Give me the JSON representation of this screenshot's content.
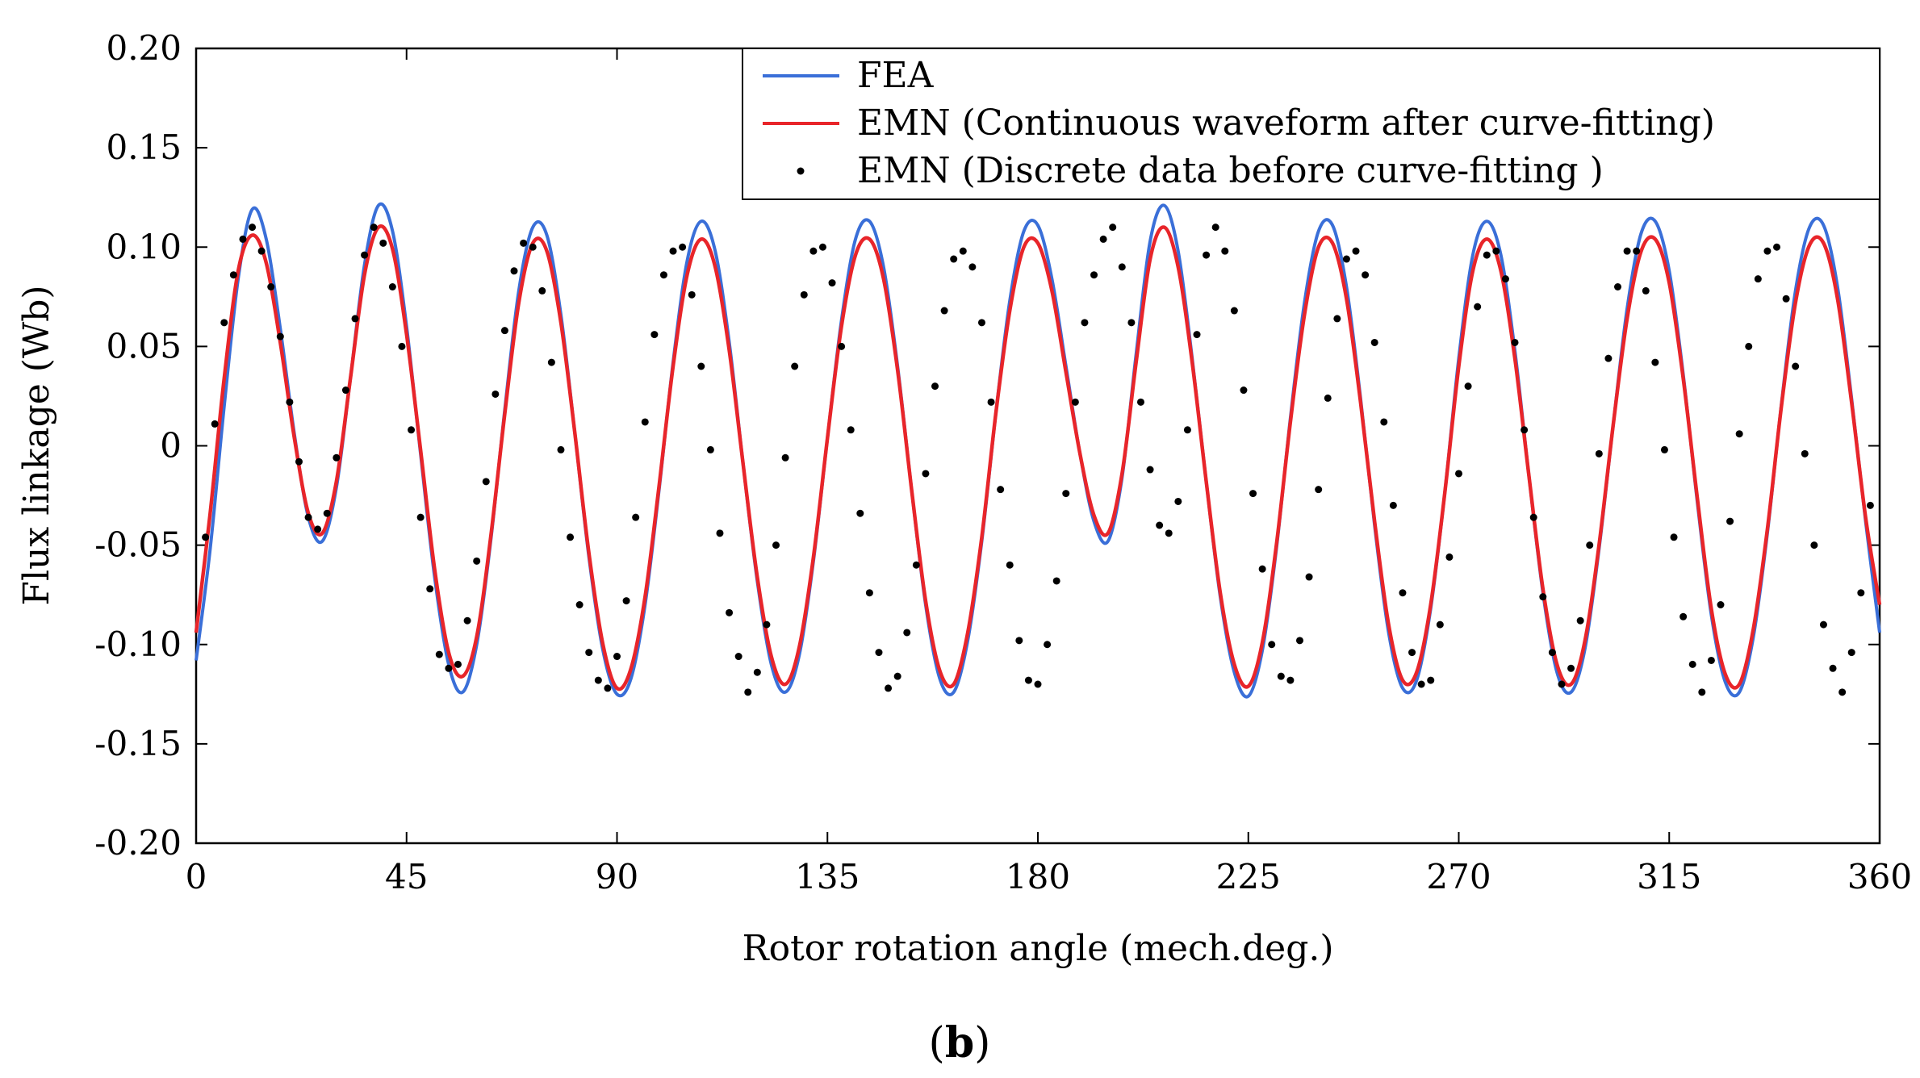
{
  "chart_data": {
    "type": "line",
    "title": "",
    "xlabel": "Rotor rotation angle (mech.deg.)",
    "ylabel": "Flux linkage (Wb)",
    "xlim": [
      0,
      360
    ],
    "ylim": [
      -0.2,
      0.2
    ],
    "xticks": [
      0,
      45,
      90,
      135,
      180,
      225,
      270,
      315,
      360
    ],
    "yticks": [
      0.2,
      0.15,
      0.1,
      0.05,
      0,
      -0.05,
      -0.1,
      -0.15,
      -0.2
    ],
    "ytick_labels": [
      "0.20",
      "0.15",
      "0.10",
      "0.05",
      "0",
      "-0.05",
      "-0.10",
      "-0.15",
      "-0.20"
    ],
    "xtick_labels": [
      "0",
      "45",
      "90",
      "135",
      "180",
      "225",
      "270",
      "315",
      "360"
    ],
    "grid": false,
    "legend_position": "top-right",
    "caption_open": "(",
    "caption_bold": "b",
    "caption_close": ")",
    "series": [
      {
        "name": "FEA",
        "style": "line",
        "color": "#3a6fd8",
        "x": [
          0,
          3,
          6,
          9,
          12,
          15,
          18,
          21,
          24,
          27,
          30,
          33,
          36,
          39,
          42,
          45,
          48,
          51,
          54,
          57,
          60,
          63,
          66,
          69,
          72,
          75,
          78,
          81,
          84,
          87,
          90,
          93,
          96,
          99,
          102,
          105,
          108,
          111,
          114,
          117,
          120,
          123,
          126,
          129,
          132,
          135,
          138,
          141,
          144,
          147,
          150,
          153,
          156,
          159,
          162,
          165,
          168,
          171,
          174,
          177,
          180,
          183,
          186,
          189,
          192,
          195,
          198,
          201,
          204,
          207,
          210,
          213,
          216,
          219,
          222,
          225,
          228,
          231,
          234,
          237,
          240,
          243,
          246,
          249,
          252,
          255,
          258,
          261,
          264,
          267,
          270,
          273,
          276,
          279,
          282,
          285,
          288,
          291,
          294,
          297,
          300,
          303,
          306,
          309,
          312,
          315,
          318,
          321,
          324,
          327,
          330,
          333,
          336,
          339,
          342,
          345,
          348,
          351,
          354,
          357,
          360
        ],
        "y": [
          -0.108,
          -0.052,
          0.02,
          0.084,
          0.119,
          0.104,
          0.059,
          0.006,
          -0.036,
          -0.048,
          -0.021,
          0.034,
          0.091,
          0.121,
          0.108,
          0.06,
          -0.004,
          -0.066,
          -0.11,
          -0.124,
          -0.1,
          -0.048,
          0.018,
          0.078,
          0.11,
          0.106,
          0.066,
          0.006,
          -0.056,
          -0.103,
          -0.125,
          -0.117,
          -0.08,
          -0.022,
          0.042,
          0.093,
          0.113,
          0.098,
          0.052,
          -0.01,
          -0.068,
          -0.11,
          -0.124,
          -0.105,
          -0.058,
          0.004,
          0.063,
          0.104,
          0.113,
          0.09,
          0.04,
          -0.022,
          -0.08,
          -0.117,
          -0.124,
          -0.098,
          -0.048,
          0.016,
          0.073,
          0.108,
          0.111,
          0.084,
          0.04,
          -0.004,
          -0.038,
          -0.048,
          -0.016,
          0.046,
          0.103,
          0.121,
          0.098,
          0.044,
          -0.018,
          -0.076,
          -0.114,
          -0.126,
          -0.103,
          -0.052,
          0.014,
          0.072,
          0.108,
          0.111,
          0.08,
          0.024,
          -0.04,
          -0.094,
          -0.122,
          -0.118,
          -0.082,
          -0.024,
          0.044,
          0.096,
          0.113,
          0.096,
          0.048,
          -0.015,
          -0.074,
          -0.114,
          -0.124,
          -0.102,
          -0.052,
          0.01,
          0.069,
          0.107,
          0.113,
          0.088,
          0.036,
          -0.028,
          -0.085,
          -0.119,
          -0.124,
          -0.096,
          -0.044,
          0.021,
          0.078,
          0.11,
          0.111,
          0.08,
          0.024,
          -0.038,
          -0.094
        ]
      },
      {
        "name": "EMN (Continuous waveform after curve-fitting)",
        "style": "line",
        "color": "#e8252a",
        "x": [
          0,
          3,
          6,
          9,
          12,
          15,
          18,
          21,
          24,
          27,
          30,
          33,
          36,
          39,
          42,
          45,
          48,
          51,
          54,
          57,
          60,
          63,
          66,
          69,
          72,
          75,
          78,
          81,
          84,
          87,
          90,
          93,
          96,
          99,
          102,
          105,
          108,
          111,
          114,
          117,
          120,
          123,
          126,
          129,
          132,
          135,
          138,
          141,
          144,
          147,
          150,
          153,
          156,
          159,
          162,
          165,
          168,
          171,
          174,
          177,
          180,
          183,
          186,
          189,
          192,
          195,
          198,
          201,
          204,
          207,
          210,
          213,
          216,
          219,
          222,
          225,
          228,
          231,
          234,
          237,
          240,
          243,
          246,
          249,
          252,
          255,
          258,
          261,
          264,
          267,
          270,
          273,
          276,
          279,
          282,
          285,
          288,
          291,
          294,
          297,
          300,
          303,
          306,
          309,
          312,
          315,
          318,
          321,
          324,
          327,
          330,
          333,
          336,
          339,
          342,
          345,
          348,
          351,
          354,
          357,
          360
        ],
        "y": [
          -0.094,
          -0.034,
          0.034,
          0.088,
          0.106,
          0.092,
          0.052,
          0.004,
          -0.034,
          -0.044,
          -0.018,
          0.034,
          0.086,
          0.11,
          0.099,
          0.056,
          -0.002,
          -0.062,
          -0.104,
          -0.116,
          -0.096,
          -0.046,
          0.016,
          0.072,
          0.102,
          0.098,
          0.062,
          0.006,
          -0.054,
          -0.1,
          -0.122,
          -0.112,
          -0.076,
          -0.02,
          0.04,
          0.086,
          0.104,
          0.09,
          0.048,
          -0.01,
          -0.066,
          -0.106,
          -0.12,
          -0.101,
          -0.056,
          0.004,
          0.06,
          0.096,
          0.104,
          0.084,
          0.038,
          -0.022,
          -0.078,
          -0.113,
          -0.12,
          -0.094,
          -0.046,
          0.016,
          0.068,
          0.1,
          0.102,
          0.078,
          0.037,
          -0.004,
          -0.035,
          -0.044,
          -0.014,
          0.042,
          0.094,
          0.11,
          0.09,
          0.042,
          -0.018,
          -0.074,
          -0.11,
          -0.121,
          -0.099,
          -0.05,
          0.012,
          0.066,
          0.1,
          0.102,
          0.074,
          0.022,
          -0.038,
          -0.09,
          -0.118,
          -0.114,
          -0.08,
          -0.024,
          0.04,
          0.088,
          0.104,
          0.088,
          0.044,
          -0.015,
          -0.072,
          -0.11,
          -0.12,
          -0.098,
          -0.05,
          0.01,
          0.064,
          0.098,
          0.104,
          0.082,
          0.034,
          -0.026,
          -0.082,
          -0.115,
          -0.12,
          -0.092,
          -0.042,
          0.02,
          0.072,
          0.101,
          0.102,
          0.074,
          0.022,
          -0.036,
          -0.08
        ]
      },
      {
        "name": "EMN (Discrete data before curve-fitting )",
        "style": "points",
        "color": "#000000",
        "x": [
          2,
          4,
          6,
          8,
          10,
          12,
          14,
          16,
          18,
          20,
          22,
          24,
          26,
          28,
          30,
          32,
          34,
          36,
          38,
          40,
          42,
          44,
          46,
          48,
          50,
          52,
          54,
          56,
          58,
          60,
          62,
          64,
          66,
          68,
          70,
          72,
          74,
          76,
          78,
          80,
          82,
          84,
          86,
          88,
          90,
          92,
          94,
          96,
          98,
          100,
          102,
          104,
          106,
          108,
          110,
          112,
          114,
          116,
          118,
          120,
          122,
          124,
          126,
          128,
          130,
          132,
          134,
          136,
          138,
          140,
          142,
          144,
          146,
          148,
          150,
          152,
          154,
          156,
          158,
          160,
          162,
          164,
          166,
          168,
          170,
          172,
          174,
          176,
          178,
          180,
          182,
          184,
          186,
          188,
          190,
          192,
          194,
          196,
          198,
          200,
          202,
          204,
          206,
          208,
          210,
          212,
          214,
          216,
          218,
          220,
          222,
          224,
          226,
          228,
          230,
          232,
          234,
          236,
          238,
          240,
          242,
          244,
          246,
          248,
          250,
          252,
          254,
          256,
          258,
          260,
          262,
          264,
          266,
          268,
          270,
          272,
          274,
          276,
          278,
          280,
          282,
          284,
          286,
          288,
          290,
          292,
          294,
          296,
          298,
          300,
          302,
          304,
          306,
          308,
          310,
          312,
          314,
          316,
          318,
          320,
          322,
          324,
          326,
          328,
          330,
          332,
          334,
          336,
          338,
          340,
          342,
          344,
          346,
          348,
          350,
          352,
          354,
          356,
          358
        ],
        "y": [
          -0.046,
          0.011,
          0.062,
          0.086,
          0.104,
          0.11,
          0.098,
          0.08,
          0.055,
          0.022,
          -0.008,
          -0.036,
          -0.042,
          -0.034,
          -0.006,
          0.028,
          0.064,
          0.096,
          0.11,
          0.102,
          0.08,
          0.05,
          0.008,
          -0.036,
          -0.072,
          -0.105,
          -0.112,
          -0.11,
          -0.088,
          -0.058,
          -0.018,
          0.026,
          0.058,
          0.088,
          0.102,
          0.1,
          0.078,
          0.042,
          -0.002,
          -0.046,
          -0.08,
          -0.104,
          -0.118,
          -0.122,
          -0.106,
          -0.078,
          -0.036,
          0.012,
          0.056,
          0.086,
          0.098,
          0.1,
          0.076,
          0.04,
          -0.002,
          -0.044,
          -0.084,
          -0.106,
          -0.124,
          -0.114,
          -0.09,
          -0.05,
          -0.006,
          0.04,
          0.076,
          0.098,
          0.1,
          0.082,
          0.05,
          0.008,
          -0.034,
          -0.074,
          -0.104,
          -0.122,
          -0.116,
          -0.094,
          -0.06,
          -0.014,
          0.03,
          0.068,
          0.094,
          0.098,
          0.09,
          0.062,
          0.022,
          -0.022,
          -0.06,
          -0.098,
          -0.118,
          -0.12,
          -0.1,
          -0.068,
          -0.024,
          0.022,
          0.062,
          0.086,
          0.104,
          0.11,
          0.09,
          0.062,
          0.022,
          -0.012,
          -0.04,
          -0.044,
          -0.028,
          0.008,
          0.056,
          0.096,
          0.11,
          0.098,
          0.068,
          0.028,
          -0.024,
          -0.062,
          -0.1,
          -0.116,
          -0.118,
          -0.098,
          -0.066,
          -0.022,
          0.024,
          0.064,
          0.094,
          0.098,
          0.086,
          0.052,
          0.012,
          -0.03,
          -0.074,
          -0.104,
          -0.12,
          -0.118,
          -0.09,
          -0.056,
          -0.014,
          0.03,
          0.07,
          0.096,
          0.098,
          0.084,
          0.052,
          0.008,
          -0.036,
          -0.076,
          -0.104,
          -0.12,
          -0.112,
          -0.088,
          -0.05,
          -0.004,
          0.044,
          0.08,
          0.098,
          0.098,
          0.078,
          0.042,
          -0.002,
          -0.046,
          -0.086,
          -0.11,
          -0.124,
          -0.108,
          -0.08,
          -0.038,
          0.006,
          0.05,
          0.084,
          0.098,
          0.1,
          0.074,
          0.04,
          -0.004,
          -0.05,
          -0.09,
          -0.112,
          -0.124,
          -0.104,
          -0.074,
          -0.03
        ]
      }
    ]
  }
}
